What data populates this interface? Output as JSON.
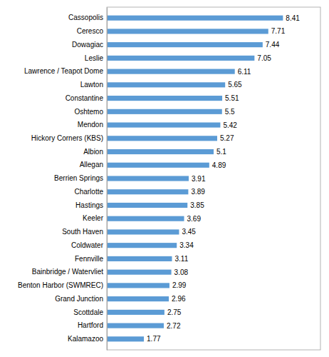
{
  "chart_data": {
    "type": "bar",
    "orientation": "horizontal",
    "categories": [
      "Cassopolis",
      "Ceresco",
      "Dowagiac",
      "Leslie",
      "Lawrence / Teapot Dome",
      "Lawton",
      "Constantine",
      "Oshtemo",
      "Mendon",
      "Hickory Corners (KBS)",
      "Albion",
      "Allegan",
      "Berrien Springs",
      "Charlotte",
      "Hastings",
      "Keeler",
      "South Haven",
      "Coldwater",
      "Fennville",
      "Bainbridge / Watervliet",
      "Benton Harbor (SWMREC)",
      "Grand Junction",
      "Scottdale",
      "Hartford",
      "Kalamazoo"
    ],
    "values": [
      8.41,
      7.71,
      7.44,
      7.05,
      6.11,
      5.65,
      5.51,
      5.5,
      5.42,
      5.27,
      5.1,
      4.89,
      3.91,
      3.89,
      3.85,
      3.69,
      3.45,
      3.34,
      3.11,
      3.08,
      2.99,
      2.96,
      2.75,
      2.72,
      1.77
    ],
    "color": "#5b9bd5",
    "xlim": [
      0,
      10.2
    ],
    "data_labels": true,
    "tick_labels": "y",
    "grid": false
  }
}
